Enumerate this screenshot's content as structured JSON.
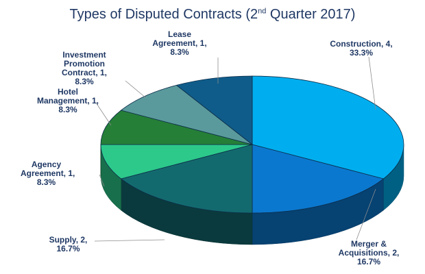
{
  "chart_data": {
    "type": "pie",
    "title_main": "Types of Disputed Contracts (2",
    "title_sup": "nd",
    "title_tail": " Quarter 2017)",
    "categories": [
      "Construction",
      "Merger & Acquisitions",
      "Supply",
      "Agency Agreement",
      "Hotel Management",
      "Investment Promotion Contract",
      "Lease Agreement"
    ],
    "values": [
      4,
      2,
      2,
      1,
      1,
      1,
      1
    ],
    "percentages": [
      "33.3%",
      "16.7%",
      "16.7%",
      "8.3%",
      "8.3%",
      "8.3%",
      "8.3%"
    ],
    "colors": [
      "#00aeef",
      "#0b78cf",
      "#136a6e",
      "#2cc98b",
      "#257f37",
      "#5a9a9c",
      "#0f5c8a"
    ],
    "labels": [
      [
        "Construction, 4,",
        "33.3%"
      ],
      [
        "Merger &",
        "Acquisitions, 2,",
        "16.7%"
      ],
      [
        "Supply, 2,",
        "16.7%"
      ],
      [
        "Agency",
        "Agreement, 1,",
        "8.3%"
      ],
      [
        "Hotel",
        "Management, 1,",
        "8.3%"
      ],
      [
        "Investment",
        "Promotion",
        "Contract, 1,",
        "8.3%"
      ],
      [
        "Lease",
        "Agreement, 1,",
        "8.3%"
      ]
    ]
  }
}
